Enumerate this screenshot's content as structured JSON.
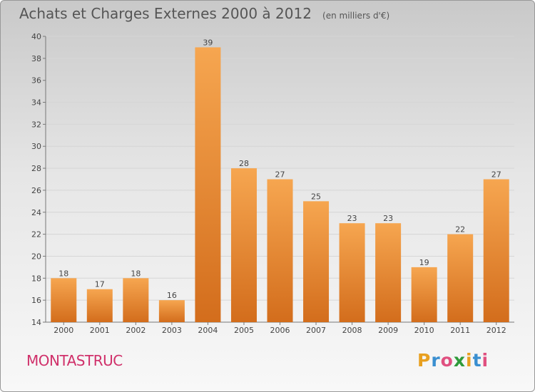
{
  "header": {
    "title": "Achats et Charges Externes 2000 à 2012",
    "unit": "(en milliers d'€)"
  },
  "footer": {
    "commune": "MONTASTRUC",
    "logo_text": "Proxiti",
    "logo_colors": [
      "#e8a020",
      "#3a8fd0",
      "#e05080",
      "#2f9a3a",
      "#e8a020",
      "#3a8fd0",
      "#e05080"
    ]
  },
  "colors": {
    "bar_light": "#f6a650",
    "bar_dark": "#d36d1c",
    "commune": "#d0306a"
  },
  "chart_data": {
    "type": "bar",
    "categories": [
      "2000",
      "2001",
      "2002",
      "2003",
      "2004",
      "2005",
      "2006",
      "2007",
      "2008",
      "2009",
      "2010",
      "2011",
      "2012"
    ],
    "values": [
      18,
      17,
      18,
      16,
      39,
      28,
      27,
      25,
      23,
      23,
      19,
      22,
      27
    ],
    "ylim": [
      14,
      40
    ],
    "yticks": [
      14,
      16,
      18,
      20,
      22,
      24,
      26,
      28,
      30,
      32,
      34,
      36,
      38,
      40
    ],
    "grid": true,
    "title": "Achats et Charges Externes 2000 à 2012",
    "xlabel": "",
    "ylabel": ""
  }
}
